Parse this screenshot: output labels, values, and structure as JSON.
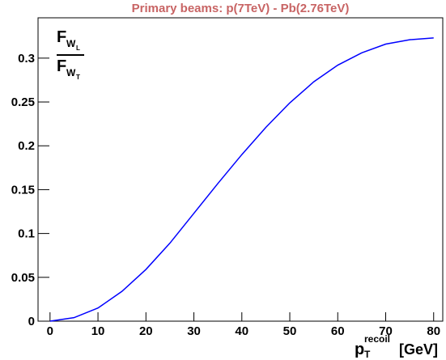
{
  "chart_data": {
    "type": "line",
    "title": "Primary beams: p(7TeV) - Pb(2.76TeV)",
    "title_color": "#c86464",
    "y_label": {
      "numerator": {
        "main": "F",
        "sub": "W",
        "subsub": "L"
      },
      "denominator": {
        "main": "F",
        "sub": "W",
        "subsub": "T"
      }
    },
    "x_label": {
      "main": "p",
      "sub": "T",
      "sup": "recoil",
      "unit": "[GeV]"
    },
    "x": [
      0,
      5,
      10,
      15,
      20,
      25,
      30,
      35,
      40,
      45,
      50,
      55,
      60,
      65,
      70,
      75,
      80
    ],
    "series": [
      {
        "name": "F_WL/F_WT",
        "color": "#0000ff",
        "values": [
          0,
          0.004,
          0.015,
          0.034,
          0.059,
          0.089,
          0.123,
          0.157,
          0.19,
          0.221,
          0.249,
          0.273,
          0.292,
          0.306,
          0.316,
          0.321,
          0.323
        ]
      }
    ],
    "xlim": [
      -2.5,
      81.9
    ],
    "ylim": [
      0,
      0.346
    ],
    "xticks": [
      0,
      10,
      20,
      30,
      40,
      50,
      60,
      70,
      80
    ],
    "yticks": [
      0,
      0.05,
      0.1,
      0.15,
      0.2,
      0.25,
      0.3
    ],
    "grid": false
  }
}
